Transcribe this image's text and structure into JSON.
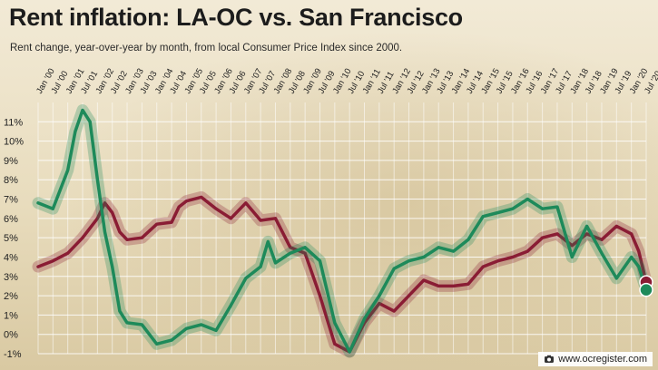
{
  "header": {
    "title": "Rent inflation: LA-OC vs. San Francisco",
    "subtitle": "Rent change, year-over-year by month, from local Consumer Price Index since 2000."
  },
  "credit": {
    "text": "www.ocregister.com",
    "icon": "camera-icon"
  },
  "colors": {
    "la_oc": "#8a1c34",
    "sf": "#1d8a5a"
  },
  "chart_data": {
    "type": "line",
    "title": "Rent inflation: LA-OC vs. San Francisco",
    "subtitle": "Rent change, year-over-year by month, from local Consumer Price Index since 2000.",
    "xlabel": "",
    "ylabel": "",
    "xlim": [
      "Jan '00",
      "Jul '20"
    ],
    "ylim": [
      -1,
      12
    ],
    "grid": true,
    "legend": "none",
    "x_tick_labels": [
      "Jan '00",
      "Jul '00",
      "Jan '01",
      "Jul '01",
      "Jan '02",
      "Jul '02",
      "Jan '03",
      "Jul '03",
      "Jan '04",
      "Jul '04",
      "Jan '05",
      "Jul '05",
      "Jan '06",
      "Jul '06",
      "Jan '07",
      "Jul '07",
      "Jan '08",
      "Jul '08",
      "Jan '09",
      "Jul '09",
      "Jan '10",
      "Jul '10",
      "Jan '11",
      "Jul '11",
      "Jan '12",
      "Jul '12",
      "Jan '13",
      "Jul '13",
      "Jan '14",
      "Jul '14",
      "Jan '15",
      "Jul '15",
      "Jan '16",
      "Jul '16",
      "Jan '17",
      "Jul '17",
      "Jan '18",
      "Jul '18",
      "Jan '19",
      "Jul '19",
      "Jan '20",
      "Jul '20"
    ],
    "y_tick_labels": [
      "-1%",
      "0%",
      "1%",
      "2%",
      "3%",
      "4%",
      "5%",
      "6%",
      "7%",
      "8%",
      "9%",
      "10%",
      "11%"
    ],
    "y_ticks": [
      -1,
      0,
      1,
      2,
      3,
      4,
      5,
      6,
      7,
      8,
      9,
      10,
      11
    ],
    "series": [
      {
        "color": "#8a1c34",
        "points": [
          [
            "Jan '00",
            3.5
          ],
          [
            "Jul '00",
            3.8
          ],
          [
            "Jan '01",
            4.2
          ],
          [
            "Jul '01",
            5.0
          ],
          [
            "Jan '02",
            6.0
          ],
          [
            "Apr '02",
            6.8
          ],
          [
            "Jul '02",
            6.3
          ],
          [
            "Oct '02",
            5.3
          ],
          [
            "Jan '03",
            4.9
          ],
          [
            "Jul '03",
            5.0
          ],
          [
            "Jan '04",
            5.7
          ],
          [
            "Jul '04",
            5.8
          ],
          [
            "Oct '04",
            6.6
          ],
          [
            "Jan '05",
            6.9
          ],
          [
            "Jul '05",
            7.1
          ],
          [
            "Jan '06",
            6.5
          ],
          [
            "Jul '06",
            6.0
          ],
          [
            "Jan '07",
            6.8
          ],
          [
            "Jul '07",
            5.9
          ],
          [
            "Jan '08",
            6.0
          ],
          [
            "Jul '08",
            4.5
          ],
          [
            "Jan '09",
            4.2
          ],
          [
            "Jul '09",
            2.0
          ],
          [
            "Jan '10",
            -0.5
          ],
          [
            "Jul '10",
            -0.9
          ],
          [
            "Jan '11",
            0.6
          ],
          [
            "Jul '11",
            1.6
          ],
          [
            "Jan '12",
            1.2
          ],
          [
            "Jul '12",
            2.0
          ],
          [
            "Jan '13",
            2.8
          ],
          [
            "Jul '13",
            2.5
          ],
          [
            "Jan '14",
            2.5
          ],
          [
            "Jul '14",
            2.6
          ],
          [
            "Jan '15",
            3.5
          ],
          [
            "Jul '15",
            3.8
          ],
          [
            "Jan '16",
            4.0
          ],
          [
            "Jul '16",
            4.3
          ],
          [
            "Jan '17",
            5.0
          ],
          [
            "Jul '17",
            5.2
          ],
          [
            "Jan '18",
            4.6
          ],
          [
            "Jul '18",
            5.2
          ],
          [
            "Jan '19",
            4.9
          ],
          [
            "Jul '19",
            5.6
          ],
          [
            "Jan '20",
            5.2
          ],
          [
            "Apr '20",
            4.3
          ],
          [
            "Jul '20",
            2.7
          ]
        ]
      },
      {
        "color": "#1d8a5a",
        "points": [
          [
            "Jan '00",
            6.8
          ],
          [
            "Jul '00",
            6.5
          ],
          [
            "Jan '01",
            8.5
          ],
          [
            "Apr '01",
            10.5
          ],
          [
            "Jul '01",
            11.6
          ],
          [
            "Oct '01",
            11.0
          ],
          [
            "Jan '02",
            8.0
          ],
          [
            "Apr '02",
            5.3
          ],
          [
            "Jul '02",
            3.5
          ],
          [
            "Oct '02",
            1.2
          ],
          [
            "Jan '03",
            0.6
          ],
          [
            "Jul '03",
            0.5
          ],
          [
            "Jan '04",
            -0.5
          ],
          [
            "Jul '04",
            -0.3
          ],
          [
            "Jan '05",
            0.3
          ],
          [
            "Jul '05",
            0.5
          ],
          [
            "Jan '06",
            0.2
          ],
          [
            "Jul '06",
            1.5
          ],
          [
            "Jan '07",
            2.9
          ],
          [
            "Jul '07",
            3.5
          ],
          [
            "Oct '07",
            4.8
          ],
          [
            "Jan '08",
            3.7
          ],
          [
            "Jul '08",
            4.2
          ],
          [
            "Jan '09",
            4.5
          ],
          [
            "Jul '09",
            3.8
          ],
          [
            "Jan '10",
            0.6
          ],
          [
            "Jul '10",
            -0.9
          ],
          [
            "Jan '11",
            0.8
          ],
          [
            "Jul '11",
            2.0
          ],
          [
            "Jan '12",
            3.4
          ],
          [
            "Jul '12",
            3.8
          ],
          [
            "Jan '13",
            4.0
          ],
          [
            "Jul '13",
            4.5
          ],
          [
            "Jan '14",
            4.3
          ],
          [
            "Jul '14",
            4.9
          ],
          [
            "Jan '15",
            6.1
          ],
          [
            "Jul '15",
            6.3
          ],
          [
            "Jan '16",
            6.5
          ],
          [
            "Jul '16",
            7.0
          ],
          [
            "Jan '17",
            6.5
          ],
          [
            "Jul '17",
            6.6
          ],
          [
            "Jan '18",
            4.0
          ],
          [
            "Jul '18",
            5.6
          ],
          [
            "Jan '19",
            4.2
          ],
          [
            "Jul '19",
            2.9
          ],
          [
            "Jan '20",
            4.0
          ],
          [
            "Apr '20",
            3.5
          ],
          [
            "Jul '20",
            2.3
          ]
        ]
      }
    ]
  }
}
